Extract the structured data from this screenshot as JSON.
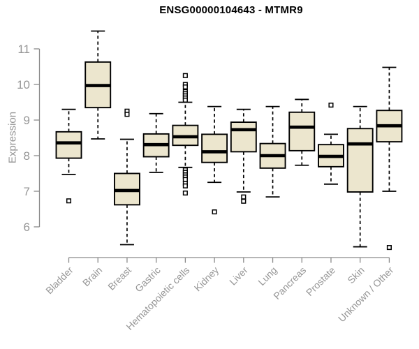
{
  "chart_data": {
    "type": "box",
    "title": "ENSG00000104643 - MTMR9",
    "ylabel": "Expression",
    "xlabel": "",
    "y_ticks": [
      6,
      7,
      8,
      9,
      10,
      11
    ],
    "ylim": [
      5.2,
      11.7
    ],
    "grid": false,
    "legend": false,
    "categories": [
      "Bladder",
      "Brain",
      "Breast",
      "Gastric",
      "Hematopoietic cells",
      "Kidney",
      "Liver",
      "Lung",
      "Pancreas",
      "Prostate",
      "Skin",
      "Unknown / Other"
    ],
    "boxes": [
      {
        "category": "Bladder",
        "whisker_low": 7.47,
        "q1": 7.93,
        "median": 8.36,
        "q3": 8.67,
        "whisker_high": 9.3,
        "outliers": [
          6.73
        ]
      },
      {
        "category": "Brain",
        "whisker_low": 8.47,
        "q1": 9.35,
        "median": 9.97,
        "q3": 10.63,
        "whisker_high": 11.5,
        "outliers": []
      },
      {
        "category": "Breast",
        "whisker_low": 5.5,
        "q1": 6.62,
        "median": 7.02,
        "q3": 7.5,
        "whisker_high": 8.46,
        "outliers": [
          9.25,
          9.16
        ]
      },
      {
        "category": "Gastric",
        "whisker_low": 7.53,
        "q1": 7.97,
        "median": 8.31,
        "q3": 8.61,
        "whisker_high": 9.18,
        "outliers": []
      },
      {
        "category": "Hematopoietic cells",
        "whisker_low": 7.67,
        "q1": 8.29,
        "median": 8.53,
        "q3": 8.85,
        "whisker_high": 9.5,
        "outliers": [
          10.25,
          10.0,
          9.93,
          9.8,
          9.74,
          9.68,
          9.62,
          9.56,
          7.6,
          7.53,
          7.46,
          7.4,
          7.33,
          7.22,
          7.15,
          6.95
        ]
      },
      {
        "category": "Kidney",
        "whisker_low": 7.25,
        "q1": 7.81,
        "median": 8.11,
        "q3": 8.6,
        "whisker_high": 9.38,
        "outliers": [
          6.42
        ]
      },
      {
        "category": "Liver",
        "whisker_low": 6.98,
        "q1": 8.11,
        "median": 8.73,
        "q3": 8.94,
        "whisker_high": 9.3,
        "outliers": [
          6.84,
          6.72
        ]
      },
      {
        "category": "Lung",
        "whisker_low": 6.84,
        "q1": 7.65,
        "median": 8.0,
        "q3": 8.34,
        "whisker_high": 9.38,
        "outliers": []
      },
      {
        "category": "Pancreas",
        "whisker_low": 7.73,
        "q1": 8.14,
        "median": 8.8,
        "q3": 9.22,
        "whisker_high": 9.58,
        "outliers": []
      },
      {
        "category": "Prostate",
        "whisker_low": 7.2,
        "q1": 7.69,
        "median": 7.98,
        "q3": 8.31,
        "whisker_high": 8.6,
        "outliers": [
          9.42
        ]
      },
      {
        "category": "Skin",
        "whisker_low": 5.44,
        "q1": 6.98,
        "median": 8.33,
        "q3": 8.76,
        "whisker_high": 9.38,
        "outliers": []
      },
      {
        "category": "Unknown / Other",
        "whisker_low": 7.0,
        "q1": 8.39,
        "median": 8.84,
        "q3": 9.27,
        "whisker_high": 10.48,
        "outliers": [
          5.42
        ]
      }
    ],
    "colors": {
      "box_fill": "#ECE6CE",
      "box_stroke": "#000000",
      "median": "#000000",
      "axis": "#8a8a8a",
      "tick_label": "#969696",
      "title": "#000000",
      "background": "#ffffff"
    }
  }
}
